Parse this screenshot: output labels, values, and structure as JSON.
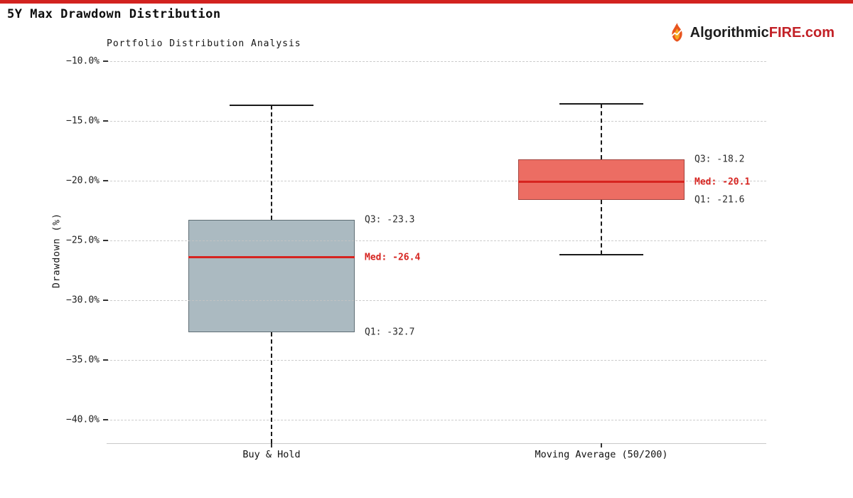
{
  "page": {
    "title": "5Y Max Drawdown Distribution",
    "brand": {
      "name_black": "Algorithmic",
      "name_red": "FIRE.com",
      "accent_red": "#c22026"
    }
  },
  "chart_data": {
    "type": "boxplot",
    "title": "Portfolio Distribution Analysis",
    "ylabel": "Drawdown (%)",
    "grid": "horizontal-dashed",
    "ylim": [
      -42,
      -10
    ],
    "y_tick_values": [
      -10,
      -15,
      -20,
      -25,
      -30,
      -35,
      -40
    ],
    "y_ticks": [
      "−10.0%",
      "−15.0%",
      "−20.0%",
      "−25.0%",
      "−30.0%",
      "−35.0%",
      "−40.0%"
    ],
    "categories": [
      "Buy & Hold",
      "Moving Average (50/200)"
    ],
    "median_color": "#d62420",
    "annotation_color": "#2b2b2b",
    "median_label_color": "#d62420",
    "series": [
      {
        "name": "Buy & Hold",
        "whisker_high": -13.7,
        "q3": -23.3,
        "median": -26.4,
        "q1": -32.7,
        "whisker_low": -42.0,
        "whisker_low_clipped": true,
        "box_fill": "#abbac1",
        "box_border": "#5f6e75",
        "labels": {
          "q3": "Q3: -23.3",
          "median": "Med: -26.4",
          "q1": "Q1: -32.7"
        }
      },
      {
        "name": "Moving Average (50/200)",
        "whisker_high": -13.6,
        "q3": -18.2,
        "median": -20.1,
        "q1": -21.6,
        "whisker_low": -26.2,
        "whisker_low_clipped": false,
        "box_fill": "#ec6d63",
        "box_border": "#a34540",
        "labels": {
          "q3": "Q3: -18.2",
          "median": "Med: -20.1",
          "q1": "Q1: -21.6"
        }
      }
    ]
  }
}
